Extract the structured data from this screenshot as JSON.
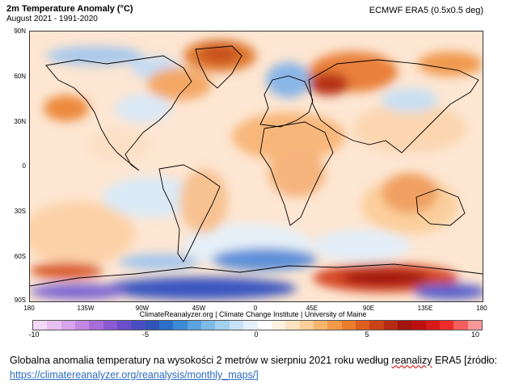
{
  "header": {
    "title": "2m Temperature Anomaly (°C)",
    "subtitle": "August 2021 - 1991-2020",
    "source": "ECMWF ERA5 (0.5x0.5 deg)"
  },
  "map": {
    "lat_labels": [
      "90N",
      "60N",
      "30N",
      "0",
      "30S",
      "60S",
      "90S"
    ],
    "lon_labels": [
      "180",
      "135W",
      "90W",
      "45W",
      "0",
      "45E",
      "90E",
      "135E",
      "180"
    ],
    "credit": "ClimateReanalyzer.org | Climate Change Institute | University of Maine"
  },
  "colorbar": {
    "ticks": [
      "-10",
      "-5",
      "0",
      "5",
      "10"
    ],
    "colors": [
      "#f3d9f6",
      "#e7bff0",
      "#d7a3ea",
      "#c187e2",
      "#a76dd8",
      "#8a5ad0",
      "#6a4fc9",
      "#4b4dc3",
      "#3154b8",
      "#2b6fc9",
      "#3d8ad6",
      "#5aa3df",
      "#7dbbe7",
      "#a2d0ef",
      "#c6e2f5",
      "#e4f1fa",
      "#ffffff",
      "#fff2e0",
      "#fde3bf",
      "#fbcf96",
      "#f7b56b",
      "#f29a47",
      "#ea7d2e",
      "#dd5f1f",
      "#c94418",
      "#b32b12",
      "#a0150d",
      "#bd1010",
      "#d91a1a",
      "#ef2a2a",
      "#f65e5e",
      "#fb9797"
    ]
  },
  "caption": {
    "text_before": "Globalna anomalia temperatury na wysokości 2 metrów w sierpniu 2021 roku według ",
    "wavy_word": "reanalizy",
    "text_after": " ERA5 [źródło:",
    "link": "https://climatereanalyzer.org/reanalysis/monthly_maps/]"
  }
}
